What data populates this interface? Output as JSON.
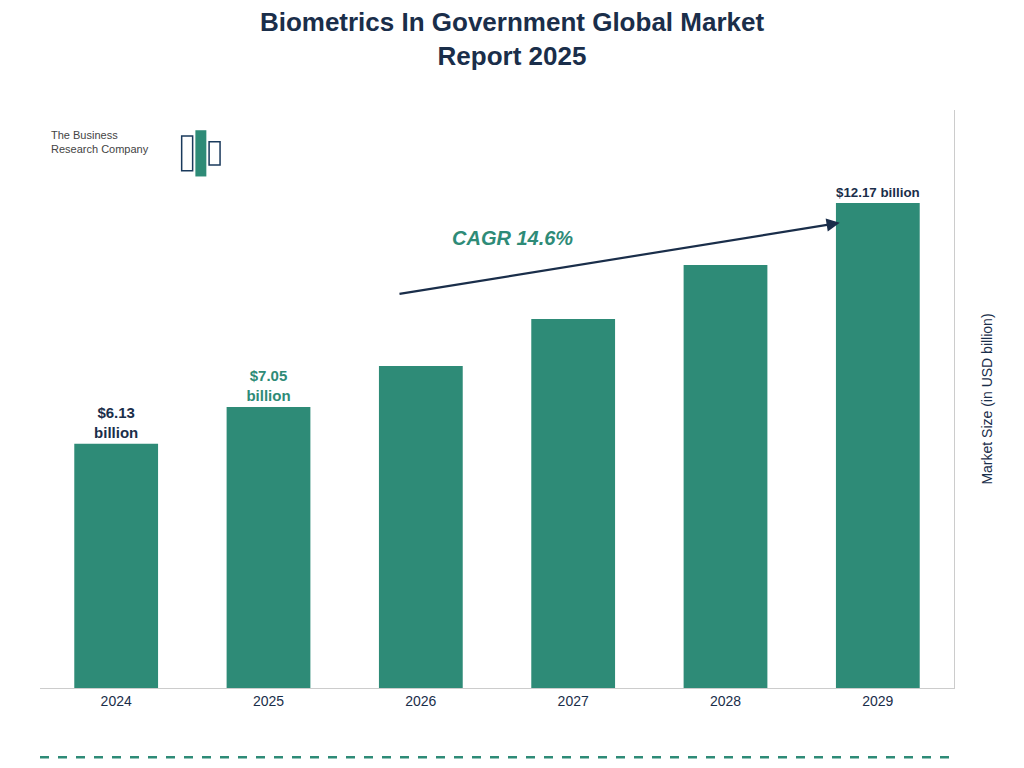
{
  "chart_data": {
    "type": "bar",
    "title": "Biometrics In Government Global Market\nReport 2025",
    "categories": [
      "2024",
      "2025",
      "2026",
      "2027",
      "2028",
      "2029"
    ],
    "values": [
      6.13,
      7.05,
      8.08,
      9.26,
      10.61,
      12.17
    ],
    "value_labels": [
      "$6.13\nbillion",
      "$7.05\nbillion",
      null,
      null,
      null,
      "$12.17 billion"
    ],
    "data_labels": true,
    "color": "#2e8b77",
    "ylabel": "Market Size (in USD billion)",
    "annotations": [
      "CAGR 14.6%",
      "The Business\nResearch Company"
    ],
    "ylim": [
      0,
      14.5
    ],
    "yticks": [],
    "grid": false,
    "tick_labels": "x"
  }
}
